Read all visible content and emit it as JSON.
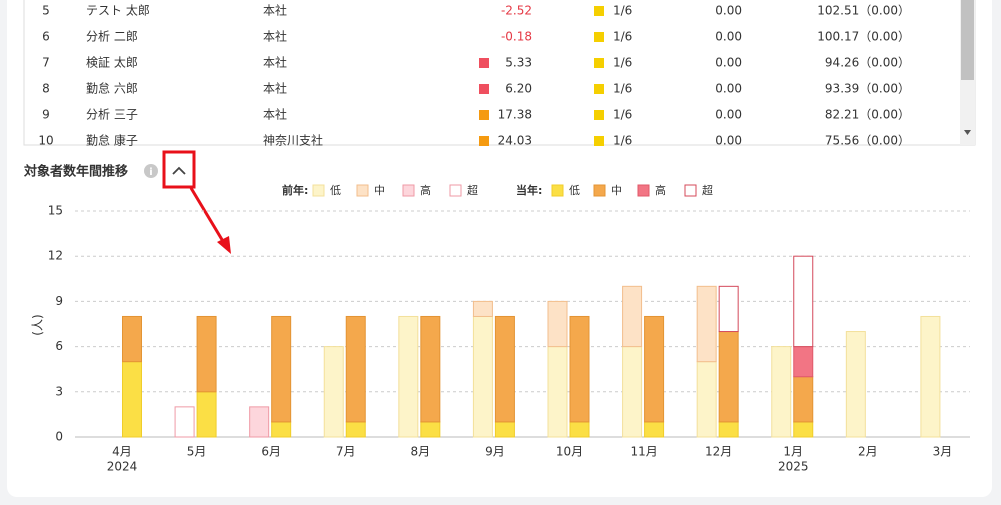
{
  "table": {
    "rows": [
      {
        "no": "5",
        "name": "テスト 太郎",
        "office": "本社",
        "flag": null,
        "value": "-2.52",
        "status": "#f5cf00",
        "ratio": "1/6",
        "score": "0.00",
        "total": "102.51（0.00）"
      },
      {
        "no": "6",
        "name": "分析 二郎",
        "office": "本社",
        "flag": null,
        "value": "-0.18",
        "status": "#f5cf00",
        "ratio": "1/6",
        "score": "0.00",
        "total": "100.17（0.00）"
      },
      {
        "no": "7",
        "name": "検証 太郎",
        "office": "本社",
        "flag": "#ef4f5f",
        "value": "5.33",
        "status": "#f5cf00",
        "ratio": "1/6",
        "score": "0.00",
        "total": "94.26（0.00）"
      },
      {
        "no": "8",
        "name": "勤怠 六郎",
        "office": "本社",
        "flag": "#ef4f5f",
        "value": "6.20",
        "status": "#f5cf00",
        "ratio": "1/6",
        "score": "0.00",
        "total": "93.39（0.00）"
      },
      {
        "no": "9",
        "name": "分析 三子",
        "office": "本社",
        "flag": "#f59a10",
        "value": "17.38",
        "status": "#f5cf00",
        "ratio": "1/6",
        "score": "0.00",
        "total": "82.21（0.00）"
      },
      {
        "no": "10",
        "name": "勤怠 康子",
        "office": "神奈川支社",
        "flag": "#f59a10",
        "value": "24.03",
        "status": "#f5cf00",
        "ratio": "1/6",
        "score": "0.00",
        "total": "75.56（0.00）"
      }
    ]
  },
  "section_title": "対象者数年間推移",
  "chart_data": {
    "type": "bar",
    "y_label": "(人)",
    "categories": [
      "4月",
      "5月",
      "6月",
      "7月",
      "8月",
      "9月",
      "10月",
      "11月",
      "12月",
      "1月",
      "2月",
      "3月"
    ],
    "year_labels": [
      "2024",
      null,
      null,
      null,
      null,
      null,
      null,
      null,
      null,
      "2025",
      null,
      null
    ],
    "ylim": [
      0,
      15
    ],
    "yticks": [
      0,
      3,
      6,
      9,
      12,
      15
    ],
    "grid": true,
    "groups": [
      {
        "name": "前年:",
        "series": [
          {
            "name": "低",
            "color": "#fdf4c9",
            "border": "#f3e09b",
            "values": [
              0,
              0,
              0,
              6,
              8,
              8,
              6,
              6,
              5,
              6,
              7,
              8
            ]
          },
          {
            "name": "中",
            "color": "#fde2c6",
            "border": "#f2be8c",
            "values": [
              0,
              0,
              0,
              0,
              0,
              1,
              3,
              4,
              5,
              0,
              0,
              0
            ]
          },
          {
            "name": "高",
            "color": "#fdd6dc",
            "border": "#ef9aa6",
            "values": [
              0,
              0,
              2,
              0,
              0,
              0,
              0,
              0,
              0,
              0,
              0,
              0
            ]
          },
          {
            "name": "超",
            "color": "#ffffff",
            "border": "#ef9aa6",
            "values": [
              0,
              2,
              0,
              0,
              0,
              0,
              0,
              0,
              0,
              0,
              0,
              0
            ]
          }
        ]
      },
      {
        "name": "当年:",
        "series": [
          {
            "name": "低",
            "color": "#fbdf45",
            "border": "#f0cd2a",
            "values": [
              5,
              3,
              1,
              1,
              1,
              1,
              1,
              1,
              1,
              1,
              null,
              null
            ]
          },
          {
            "name": "中",
            "color": "#f4a84c",
            "border": "#e39434",
            "values": [
              3,
              5,
              7,
              7,
              7,
              7,
              7,
              7,
              6,
              3,
              null,
              null
            ]
          },
          {
            "name": "高",
            "color": "#f27584",
            "border": "#e0596a",
            "values": [
              0,
              0,
              0,
              0,
              0,
              0,
              0,
              0,
              0,
              2,
              null,
              null
            ]
          },
          {
            "name": "超",
            "color": "#ffffff",
            "border": "#d4495a",
            "values": [
              0,
              0,
              0,
              0,
              0,
              0,
              0,
              0,
              3,
              6,
              null,
              null
            ]
          }
        ]
      }
    ]
  }
}
